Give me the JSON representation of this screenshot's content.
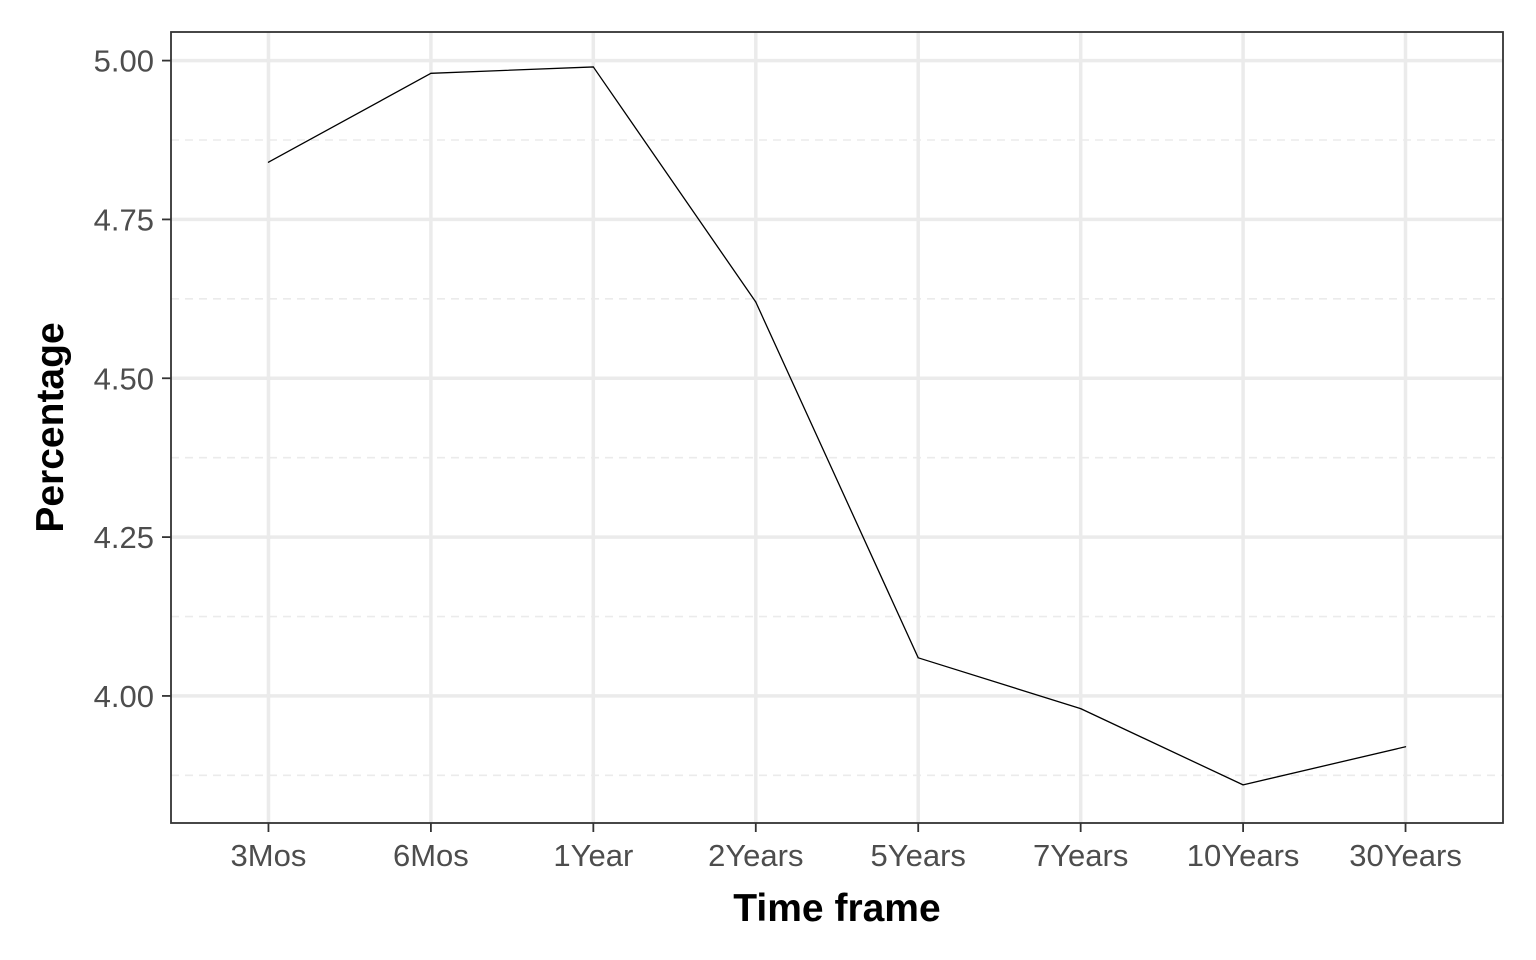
{
  "chart_data": {
    "type": "line",
    "categories": [
      "3Mos",
      "6Mos",
      "1Year",
      "2Years",
      "5Years",
      "7Years",
      "10Years",
      "30Years"
    ],
    "values": [
      4.84,
      4.98,
      4.99,
      4.62,
      4.06,
      3.98,
      3.86,
      3.92
    ],
    "title": "",
    "xlabel": "Time frame",
    "ylabel": "Percentage",
    "ylim": [
      3.8,
      5.045
    ],
    "yticks": [
      4.0,
      4.25,
      4.5,
      4.75,
      5.0
    ],
    "ytick_labels": [
      "4.00",
      "4.25",
      "4.50",
      "4.75",
      "5.00"
    ],
    "grid": true,
    "legend": "none",
    "colors": {
      "line": "#000000",
      "grid_major": "#ebebeb",
      "grid_minor": "#ebebeb",
      "panel_border": "#333333",
      "tick_text": "#4d4d4d"
    }
  }
}
